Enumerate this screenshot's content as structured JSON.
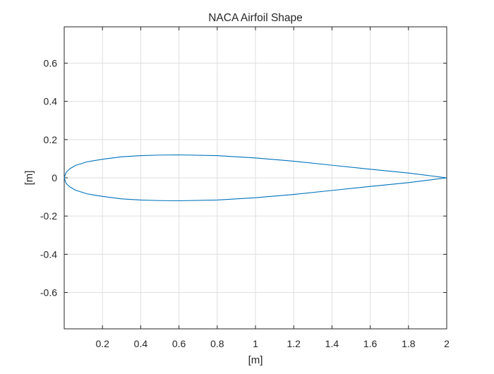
{
  "chart_data": {
    "type": "line",
    "title": "NACA Airfoil Shape",
    "xlabel": "[m]",
    "ylabel": "[m]",
    "xlim": [
      0,
      2
    ],
    "ylim": [
      -0.79,
      0.79
    ],
    "grid": true,
    "x_ticks": [
      0.2,
      0.4,
      0.6,
      0.8,
      1,
      1.2,
      1.4,
      1.6,
      1.8,
      2
    ],
    "x_tick_labels": [
      "0.2",
      "0.4",
      "0.6",
      "0.8",
      "1",
      "1.2",
      "1.4",
      "1.6",
      "1.8",
      "2"
    ],
    "y_ticks": [
      0.6,
      0.4,
      0.2,
      0,
      -0.2,
      -0.4,
      -0.6
    ],
    "y_tick_labels": [
      "0.6",
      "0.4",
      "0.2",
      "0",
      "-0.2",
      "-0.4",
      "-0.6"
    ],
    "series": [
      {
        "color": "#0072bd",
        "x": [
          2.0,
          1.8,
          1.6,
          1.4,
          1.2,
          1.0,
          0.8,
          0.6,
          0.5,
          0.4,
          0.3,
          0.2,
          0.12,
          0.06,
          0.03,
          0.01,
          0.0,
          0.01,
          0.03,
          0.06,
          0.12,
          0.2,
          0.3,
          0.4,
          0.5,
          0.6,
          0.8,
          1.0,
          1.2,
          1.4,
          1.6,
          1.8,
          2.0
        ],
        "y": [
          0.0,
          0.025,
          0.045,
          0.066,
          0.087,
          0.104,
          0.116,
          0.12,
          0.119,
          0.116,
          0.11,
          0.097,
          0.084,
          0.065,
          0.048,
          0.029,
          0.0,
          -0.029,
          -0.048,
          -0.065,
          -0.084,
          -0.097,
          -0.11,
          -0.116,
          -0.119,
          -0.12,
          -0.116,
          -0.104,
          -0.087,
          -0.066,
          -0.045,
          -0.025,
          0.0
        ]
      }
    ]
  }
}
